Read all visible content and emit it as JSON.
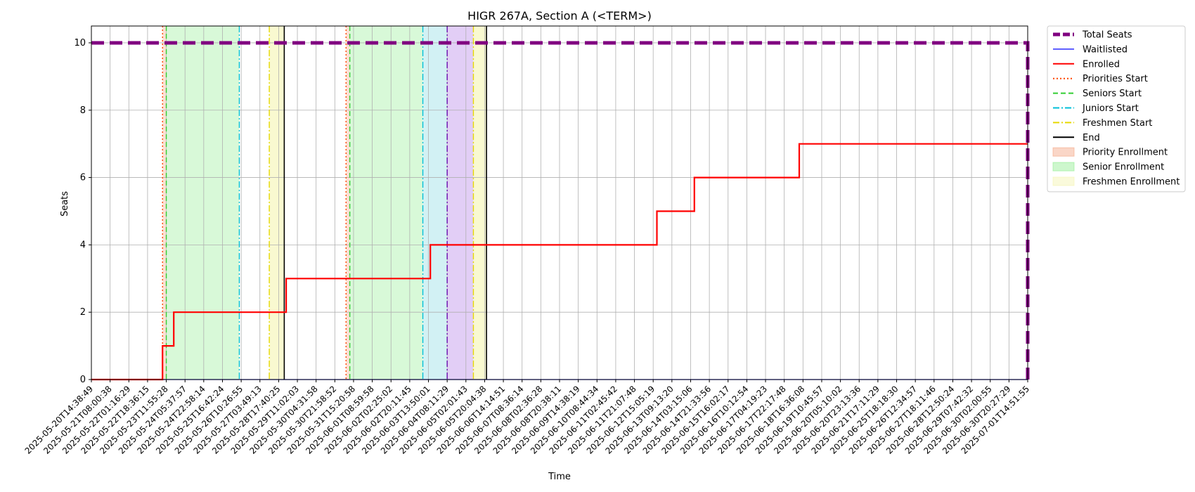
{
  "chart_data": {
    "type": "line",
    "title": "HIGR 267A, Section A (<TERM>)",
    "xlabel": "Time",
    "ylabel": "Seats",
    "ylim": [
      0,
      10.5
    ],
    "y_ticks": [
      0,
      2,
      4,
      6,
      8,
      10
    ],
    "grid": true,
    "legend_position": "outside-top-right",
    "x_tick_labels": [
      "2025-05-20T14:38:49",
      "2025-05-21T08:00:38",
      "2025-05-22T01:16:29",
      "2025-05-22T18:36:15",
      "2025-05-23T11:55:28",
      "2025-05-24T05:37:57",
      "2025-05-24T22:58:14",
      "2025-05-25T16:42:24",
      "2025-05-26T10:26:55",
      "2025-05-27T03:49:13",
      "2025-05-28T17:40:25",
      "2025-05-29T11:02:03",
      "2025-05-30T04:31:58",
      "2025-05-30T21:58:52",
      "2025-05-31T15:20:58",
      "2025-06-01T08:59:58",
      "2025-06-02T02:25:02",
      "2025-06-02T20:11:45",
      "2025-06-03T13:50:01",
      "2025-06-04T08:11:29",
      "2025-06-05T02:01:43",
      "2025-06-05T20:04:38",
      "2025-06-06T14:14:51",
      "2025-06-07T08:36:14",
      "2025-06-08T02:36:28",
      "2025-06-08T20:38:11",
      "2025-06-09T14:38:19",
      "2025-06-10T08:44:34",
      "2025-06-11T02:45:42",
      "2025-06-11T21:07:48",
      "2025-06-12T15:05:19",
      "2025-06-13T09:13:20",
      "2025-06-14T03:15:06",
      "2025-06-14T21:33:56",
      "2025-06-15T16:02:17",
      "2025-06-16T10:12:54",
      "2025-06-17T04:19:23",
      "2025-06-17T22:17:48",
      "2025-06-18T16:36:08",
      "2025-06-19T10:45:57",
      "2025-06-20T05:10:02",
      "2025-06-20T23:13:36",
      "2025-06-21T17:11:29",
      "2025-06-25T18:18:30",
      "2025-06-26T12:34:57",
      "2025-06-27T18:11:46",
      "2025-06-28T12:50:24",
      "2025-06-29T07:42:32",
      "2025-06-30T02:00:55",
      "2025-06-30T20:27:29",
      "2025-07-01T14:51:55"
    ],
    "x_range": [
      0,
      50
    ],
    "series": [
      {
        "name": "Total Seats",
        "color": "#800080",
        "style": "dashed-thick",
        "points": [
          [
            0,
            10
          ],
          [
            50,
            10
          ],
          [
            50,
            0
          ]
        ]
      },
      {
        "name": "Waitlisted",
        "color": "#0000ff",
        "style": "solid-thin",
        "points": [
          [
            0,
            0
          ],
          [
            50,
            0
          ]
        ]
      },
      {
        "name": "Enrolled",
        "color": "#ff0000",
        "style": "solid",
        "points": [
          [
            0,
            0
          ],
          [
            3.8,
            0
          ],
          [
            3.8,
            1
          ],
          [
            4.4,
            1
          ],
          [
            4.4,
            2
          ],
          [
            10.4,
            2
          ],
          [
            10.4,
            3
          ],
          [
            18.1,
            3
          ],
          [
            18.1,
            4
          ],
          [
            30.2,
            4
          ],
          [
            30.2,
            5
          ],
          [
            32.2,
            5
          ],
          [
            32.2,
            6
          ],
          [
            37.8,
            6
          ],
          [
            37.8,
            7
          ],
          [
            50,
            7
          ]
        ]
      }
    ],
    "vertical_markers": [
      {
        "name": "Priorities Start",
        "color": "#ff4500",
        "style": "dotted",
        "x": [
          3.8,
          13.6
        ]
      },
      {
        "name": "Seniors Start",
        "color": "#32cd32",
        "style": "dashed",
        "x": [
          4.0,
          13.8
        ]
      },
      {
        "name": "Juniors Start",
        "color": "#00bfd8",
        "style": "dashdot",
        "x": [
          7.9,
          17.7
        ]
      },
      {
        "name": "Freshmen Start",
        "color": "#e6d800",
        "style": "dashdot",
        "x": [
          9.5,
          20.4
        ]
      },
      {
        "name": "End",
        "color": "#000000",
        "style": "solid",
        "x": [
          10.3,
          21.1
        ]
      },
      {
        "name": "",
        "color": "#6a0dad",
        "style": "dashdot",
        "x": [
          19.0
        ]
      }
    ],
    "shaded_regions": [
      {
        "name": "Priority Enrollment",
        "color": "#f4a582",
        "alpha": 0.35,
        "ranges": [
          [
            3.8,
            4.0
          ],
          [
            13.6,
            13.8
          ]
        ]
      },
      {
        "name": "Senior Enrollment",
        "color": "#90ee90",
        "alpha": 0.35,
        "ranges": [
          [
            4.0,
            7.9
          ],
          [
            13.8,
            17.7
          ]
        ]
      },
      {
        "name": "",
        "color": "#7fd6e0",
        "alpha": 0.35,
        "ranges": [
          [
            17.7,
            19.0
          ]
        ]
      },
      {
        "name": "",
        "color": "#b784e8",
        "alpha": 0.4,
        "ranges": [
          [
            19.0,
            20.4
          ]
        ]
      },
      {
        "name": "Freshmen Enrollment",
        "color": "#f5f5b0",
        "alpha": 0.6,
        "ranges": [
          [
            9.5,
            10.3
          ],
          [
            20.4,
            21.1
          ]
        ]
      }
    ],
    "legend": [
      {
        "label": "Total Seats",
        "kind": "line",
        "color": "#800080",
        "style": "dashed-thick"
      },
      {
        "label": "Waitlisted",
        "kind": "line",
        "color": "#0000ff",
        "style": "solid-thin"
      },
      {
        "label": "Enrolled",
        "kind": "line",
        "color": "#ff0000",
        "style": "solid"
      },
      {
        "label": "Priorities Start",
        "kind": "line",
        "color": "#ff4500",
        "style": "dotted"
      },
      {
        "label": "Seniors Start",
        "kind": "line",
        "color": "#32cd32",
        "style": "dashed"
      },
      {
        "label": "Juniors Start",
        "kind": "line",
        "color": "#00bfd8",
        "style": "dashdot"
      },
      {
        "label": "Freshmen Start",
        "kind": "line",
        "color": "#e6d800",
        "style": "dashdot"
      },
      {
        "label": "End",
        "kind": "line",
        "color": "#000000",
        "style": "solid"
      },
      {
        "label": "Priority Enrollment",
        "kind": "patch",
        "color": "#f4a582"
      },
      {
        "label": "Senior Enrollment",
        "kind": "patch",
        "color": "#90ee90"
      },
      {
        "label": "Freshmen Enrollment",
        "kind": "patch",
        "color": "#f5f5b0"
      }
    ]
  }
}
